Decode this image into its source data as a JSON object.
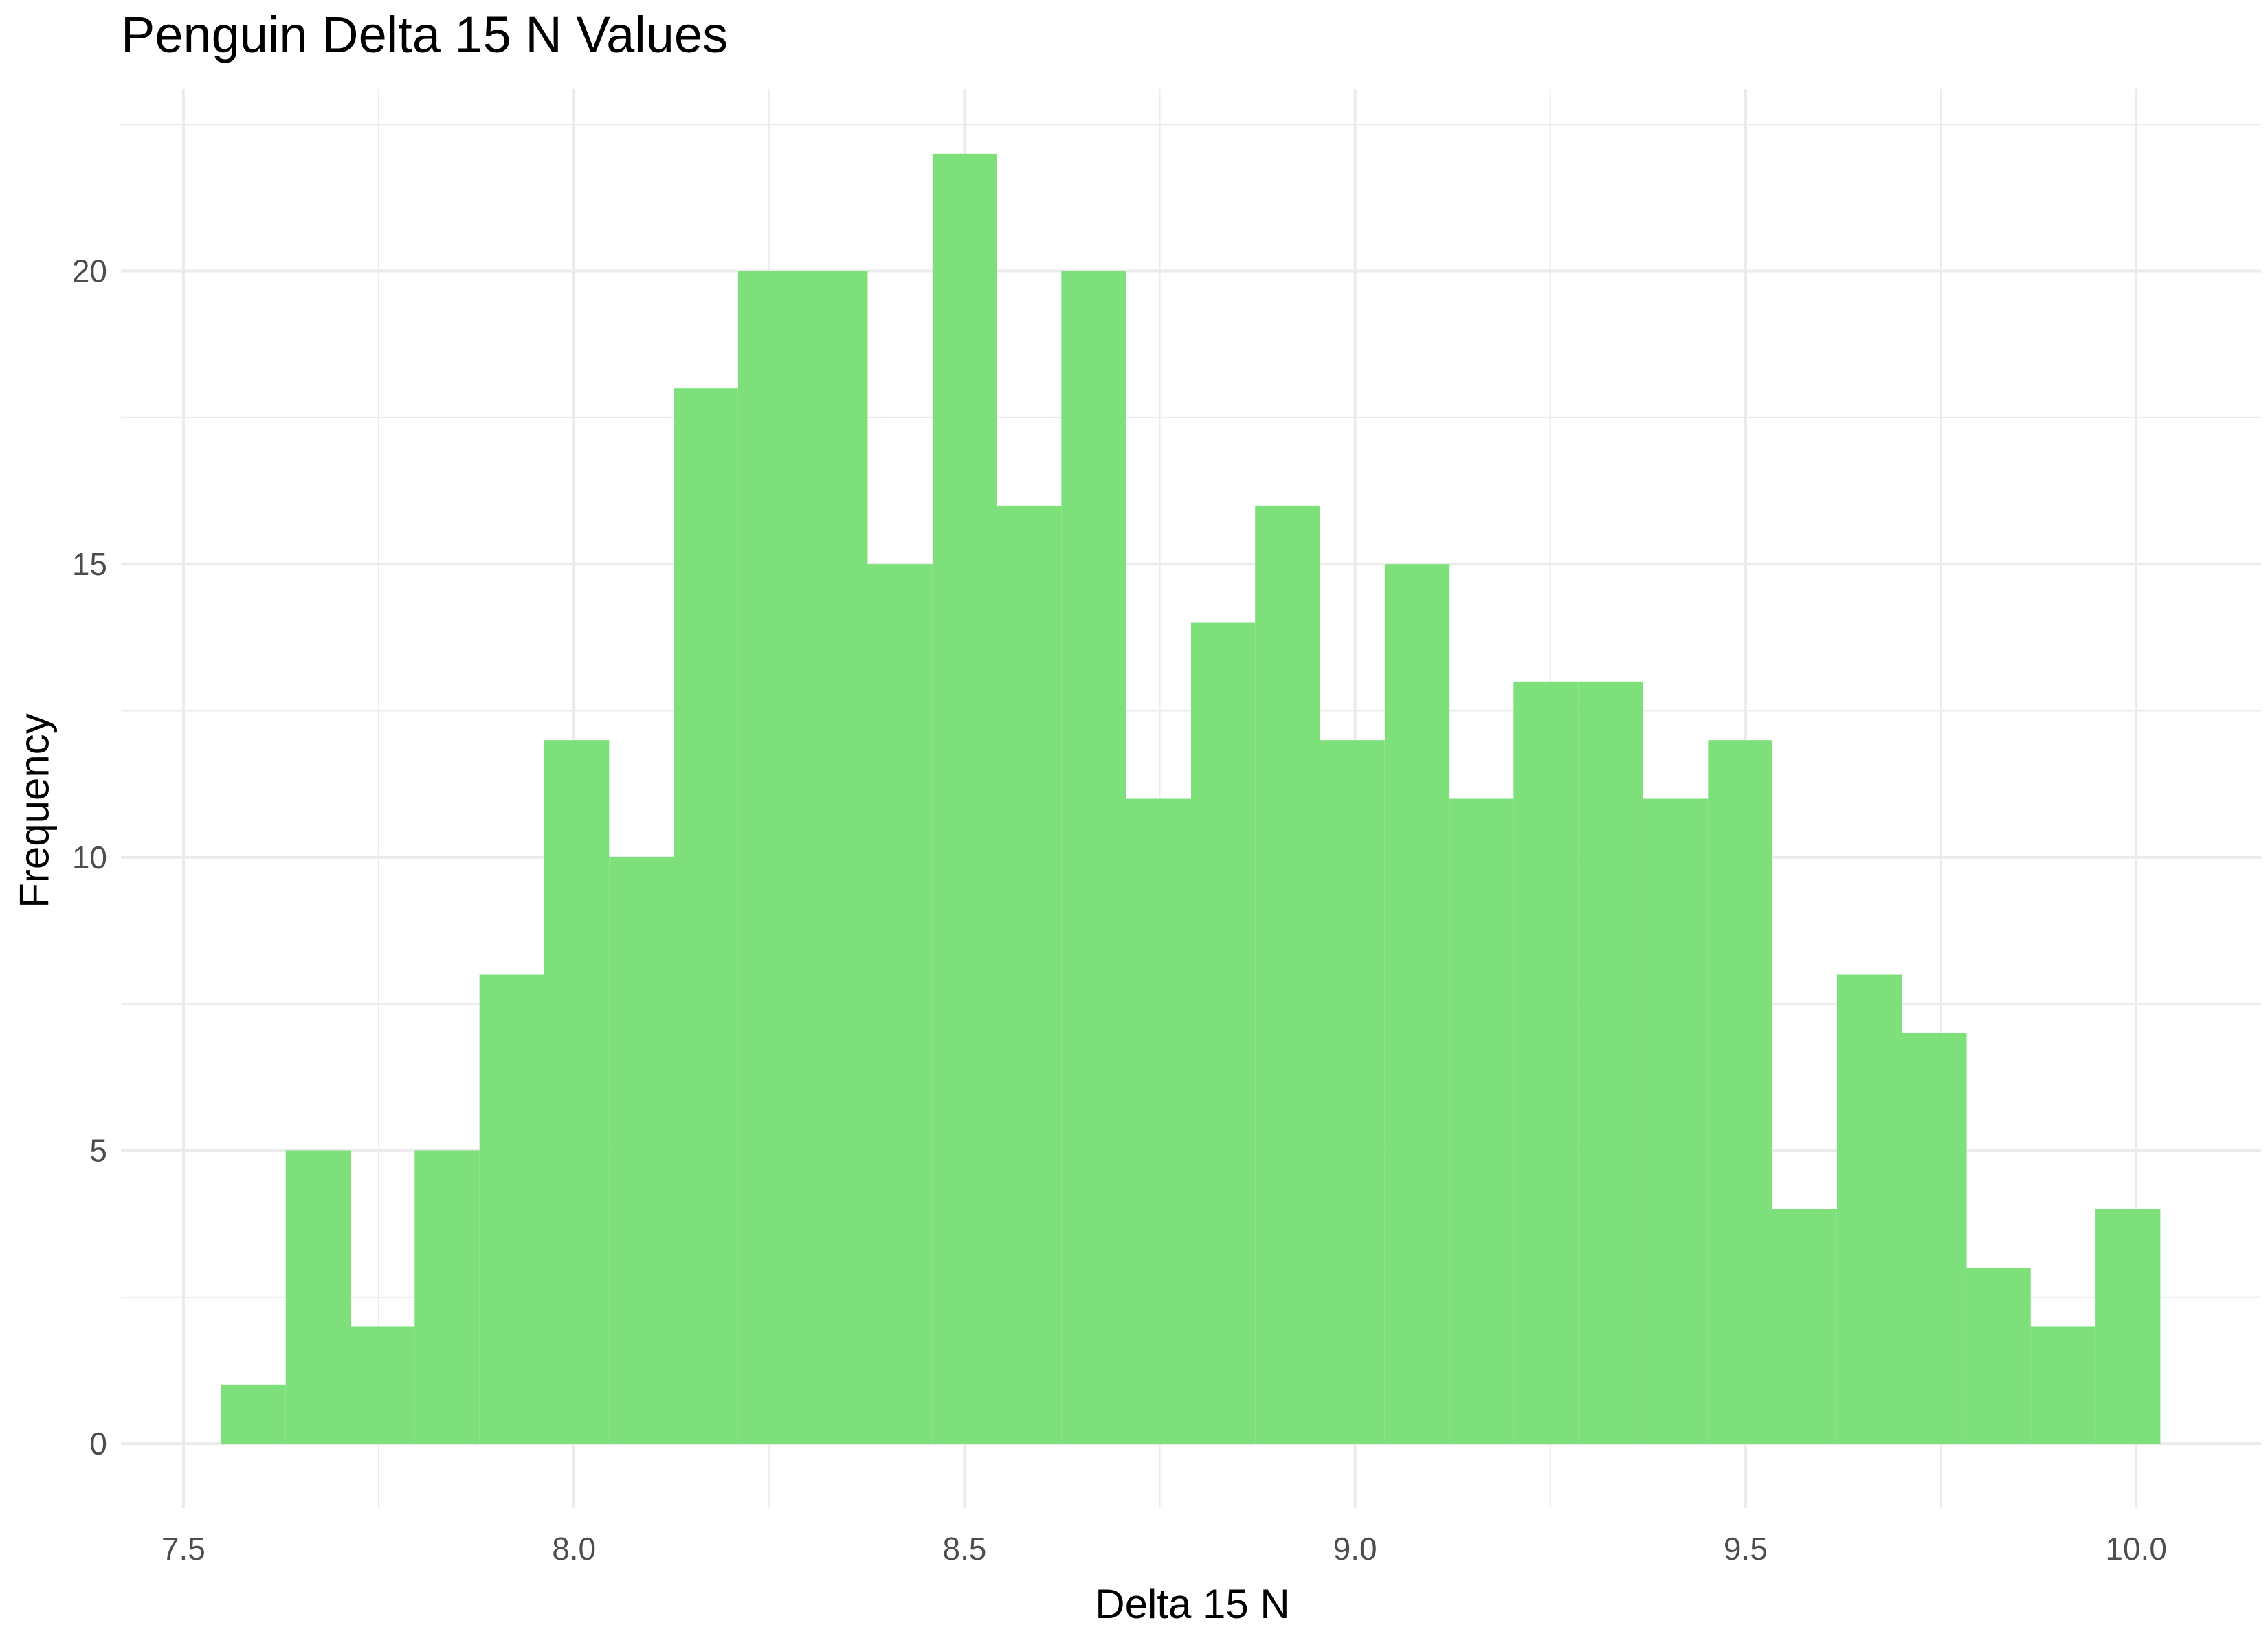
{
  "chart_data": {
    "type": "bar",
    "title": "Penguin Delta 15 N Values",
    "xlabel": "Delta 15 N",
    "ylabel": "Frequency",
    "bin_width": 0.0828,
    "bins": [
      {
        "x0": 7.548,
        "x1": 7.631,
        "count": 1
      },
      {
        "x0": 7.631,
        "x1": 7.714,
        "count": 5
      },
      {
        "x0": 7.714,
        "x1": 7.796,
        "count": 2
      },
      {
        "x0": 7.796,
        "x1": 7.879,
        "count": 5
      },
      {
        "x0": 7.879,
        "x1": 7.962,
        "count": 8
      },
      {
        "x0": 7.962,
        "x1": 8.045,
        "count": 12
      },
      {
        "x0": 8.045,
        "x1": 8.128,
        "count": 10
      },
      {
        "x0": 8.128,
        "x1": 8.21,
        "count": 18
      },
      {
        "x0": 8.21,
        "x1": 8.293,
        "count": 20
      },
      {
        "x0": 8.293,
        "x1": 8.376,
        "count": 20
      },
      {
        "x0": 8.376,
        "x1": 8.459,
        "count": 15
      },
      {
        "x0": 8.459,
        "x1": 8.541,
        "count": 22
      },
      {
        "x0": 8.541,
        "x1": 8.624,
        "count": 16
      },
      {
        "x0": 8.624,
        "x1": 8.707,
        "count": 20
      },
      {
        "x0": 8.707,
        "x1": 8.79,
        "count": 11
      },
      {
        "x0": 8.79,
        "x1": 8.872,
        "count": 14
      },
      {
        "x0": 8.872,
        "x1": 8.955,
        "count": 16
      },
      {
        "x0": 8.955,
        "x1": 9.038,
        "count": 12
      },
      {
        "x0": 9.038,
        "x1": 9.121,
        "count": 15
      },
      {
        "x0": 9.121,
        "x1": 9.203,
        "count": 11
      },
      {
        "x0": 9.203,
        "x1": 9.286,
        "count": 13
      },
      {
        "x0": 9.286,
        "x1": 9.369,
        "count": 13
      },
      {
        "x0": 9.369,
        "x1": 9.452,
        "count": 11
      },
      {
        "x0": 9.452,
        "x1": 9.534,
        "count": 12
      },
      {
        "x0": 9.534,
        "x1": 9.617,
        "count": 4
      },
      {
        "x0": 9.617,
        "x1": 9.7,
        "count": 8
      },
      {
        "x0": 9.7,
        "x1": 9.783,
        "count": 7
      },
      {
        "x0": 9.783,
        "x1": 9.865,
        "count": 3
      },
      {
        "x0": 9.865,
        "x1": 9.948,
        "count": 2
      },
      {
        "x0": 9.948,
        "x1": 10.031,
        "count": 4
      }
    ],
    "xlim": [
      7.42,
      10.16
    ],
    "ylim": [
      -1.1,
      23.1
    ],
    "x_ticks": [
      7.5,
      8.0,
      8.5,
      9.0,
      9.5,
      10.0
    ],
    "x_tick_labels": [
      "7.5",
      "8.0",
      "8.5",
      "9.0",
      "9.5",
      "10.0"
    ],
    "y_ticks": [
      0,
      5,
      10,
      15,
      20
    ],
    "y_tick_labels": [
      "0",
      "5",
      "10",
      "15",
      "20"
    ],
    "fill_color": "#7ee07a",
    "grid_color": "#ebebeb",
    "grid": true,
    "legend": "none"
  }
}
